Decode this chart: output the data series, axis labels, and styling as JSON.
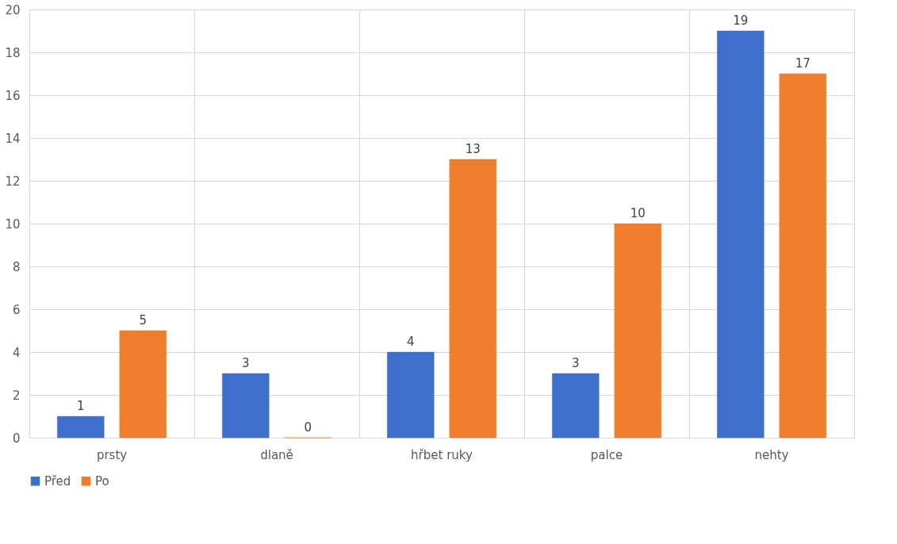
{
  "chart_data": {
    "type": "bar",
    "categories": [
      "prsty",
      "dlaně",
      "hřbet ruky",
      "palce",
      "nehty"
    ],
    "series": [
      {
        "name": "Před",
        "color": "#3f6fcb",
        "values": [
          1,
          3,
          4,
          3,
          19
        ]
      },
      {
        "name": "Po",
        "color": "#ef7d2c",
        "values": [
          5,
          0,
          13,
          10,
          17
        ]
      }
    ],
    "ylim": [
      0,
      20
    ],
    "yticks": [
      0,
      2,
      4,
      6,
      8,
      10,
      12,
      14,
      16,
      18,
      20
    ],
    "grid": true,
    "legend": "bottom",
    "data_labels": true
  }
}
